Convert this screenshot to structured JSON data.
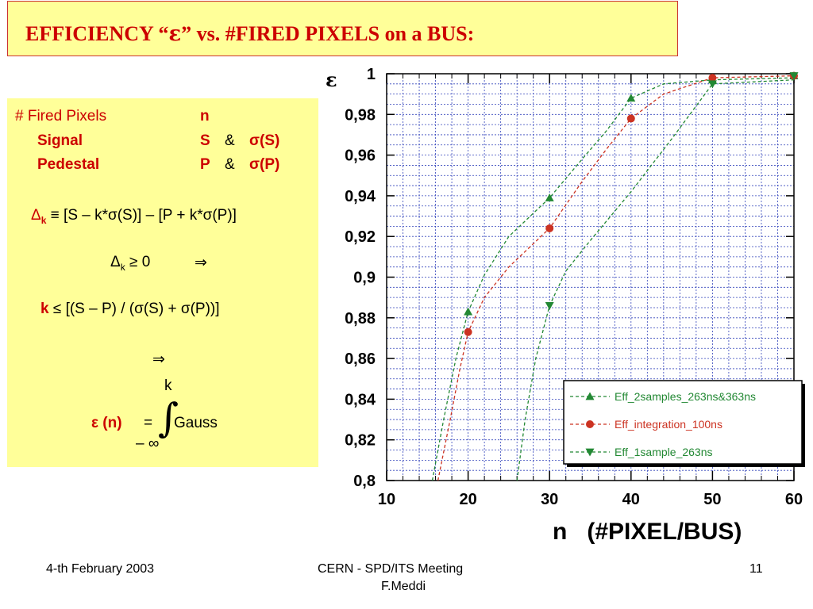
{
  "title": {
    "prefix": "EFFICIENCY “",
    "epsilon": "ε",
    "suffix": "” vs. #FIRED PIXELS on a BUS:"
  },
  "definitions": {
    "fired_pixels": "# Fired Pixels",
    "fired_pixels_sym": "n",
    "signal": "Signal",
    "signal_sym": "S",
    "signal_amp": "&",
    "signal_sigma": "σ(S)",
    "pedestal": "Pedestal",
    "pedestal_sym": "P",
    "pedestal_amp": "&",
    "pedestal_sigma": "σ(P)"
  },
  "formulas": {
    "delta_sym": "Δ",
    "delta_sub": "k",
    "delta_def": "≡ [S – k*σ(S)] – [P + k*σ(P)]",
    "cond_delta": "Δ",
    "cond_sub": "k",
    "cond_rest": "≥ 0",
    "implies_1": "⇒",
    "k_sym": "k",
    "k_rest": "≤ [(S – P) / (σ(S) + σ(P))]",
    "implies_2": "⇒",
    "integral_upper": "k",
    "integral_sign": "∫",
    "eps_n": "ε (n)",
    "equals": "=",
    "integral_lower": "– ∞",
    "gauss": "Gauss"
  },
  "chart_data": {
    "type": "line",
    "ylabel_symbol": "ε",
    "xlabel": "n   (#PIXEL/BUS)",
    "xlim": [
      10,
      60
    ],
    "ylim": [
      0.8,
      1.0
    ],
    "x_ticks": [
      "10",
      "20",
      "30",
      "40",
      "50",
      "60"
    ],
    "y_ticks": [
      "0,8",
      "0,82",
      "0,84",
      "0,86",
      "0,88",
      "0,9",
      "0,92",
      "0,94",
      "0,96",
      "0,98",
      "1"
    ],
    "grid": true,
    "legend_position": "bottom-right",
    "series": [
      {
        "name": "Eff_2samples_263ns&363ns",
        "marker": "triangle-up",
        "color": "#228833",
        "points": [
          [
            20,
            0.883
          ],
          [
            30,
            0.939
          ],
          [
            40,
            0.988
          ],
          [
            50,
            0.997
          ],
          [
            60,
            0.999
          ]
        ],
        "trend": [
          [
            15.6,
            0.8
          ],
          [
            17,
            0.83
          ],
          [
            18.5,
            0.86
          ],
          [
            20,
            0.883
          ],
          [
            22,
            0.901
          ],
          [
            25,
            0.92
          ],
          [
            30,
            0.939
          ],
          [
            34,
            0.958
          ],
          [
            37,
            0.972
          ],
          [
            40,
            0.988
          ],
          [
            44,
            0.995
          ],
          [
            50,
            0.997
          ],
          [
            60,
            0.998
          ]
        ]
      },
      {
        "name": "Eff_integration_100ns",
        "marker": "circle",
        "color": "#cc3322",
        "points": [
          [
            20,
            0.873
          ],
          [
            30,
            0.924
          ],
          [
            40,
            0.978
          ],
          [
            50,
            0.998
          ],
          [
            60,
            0.999
          ]
        ],
        "trend": [
          [
            16.3,
            0.8
          ],
          [
            17.8,
            0.83
          ],
          [
            19,
            0.855
          ],
          [
            20,
            0.873
          ],
          [
            22,
            0.89
          ],
          [
            25,
            0.905
          ],
          [
            30,
            0.924
          ],
          [
            34,
            0.947
          ],
          [
            37,
            0.963
          ],
          [
            40,
            0.978
          ],
          [
            44,
            0.99
          ],
          [
            50,
            0.998
          ],
          [
            60,
            0.999
          ]
        ]
      },
      {
        "name": "Eff_1sample_263ns",
        "marker": "triangle-down",
        "color": "#228833",
        "points": [
          [
            30,
            0.886
          ],
          [
            50,
            0.995
          ],
          [
            60,
            0.999
          ]
        ],
        "trend": [
          [
            26,
            0.8
          ],
          [
            27,
            0.83
          ],
          [
            28.3,
            0.86
          ],
          [
            30,
            0.886
          ],
          [
            32,
            0.903
          ],
          [
            35,
            0.918
          ],
          [
            40,
            0.942
          ],
          [
            45,
            0.968
          ],
          [
            50,
            0.995
          ],
          [
            60,
            0.997
          ]
        ]
      }
    ]
  },
  "footer": {
    "date": "4-th February 2003",
    "meeting_line1": "CERN - SPD/ITS Meeting",
    "meeting_line2": "F.Meddi",
    "page_number": "11"
  }
}
